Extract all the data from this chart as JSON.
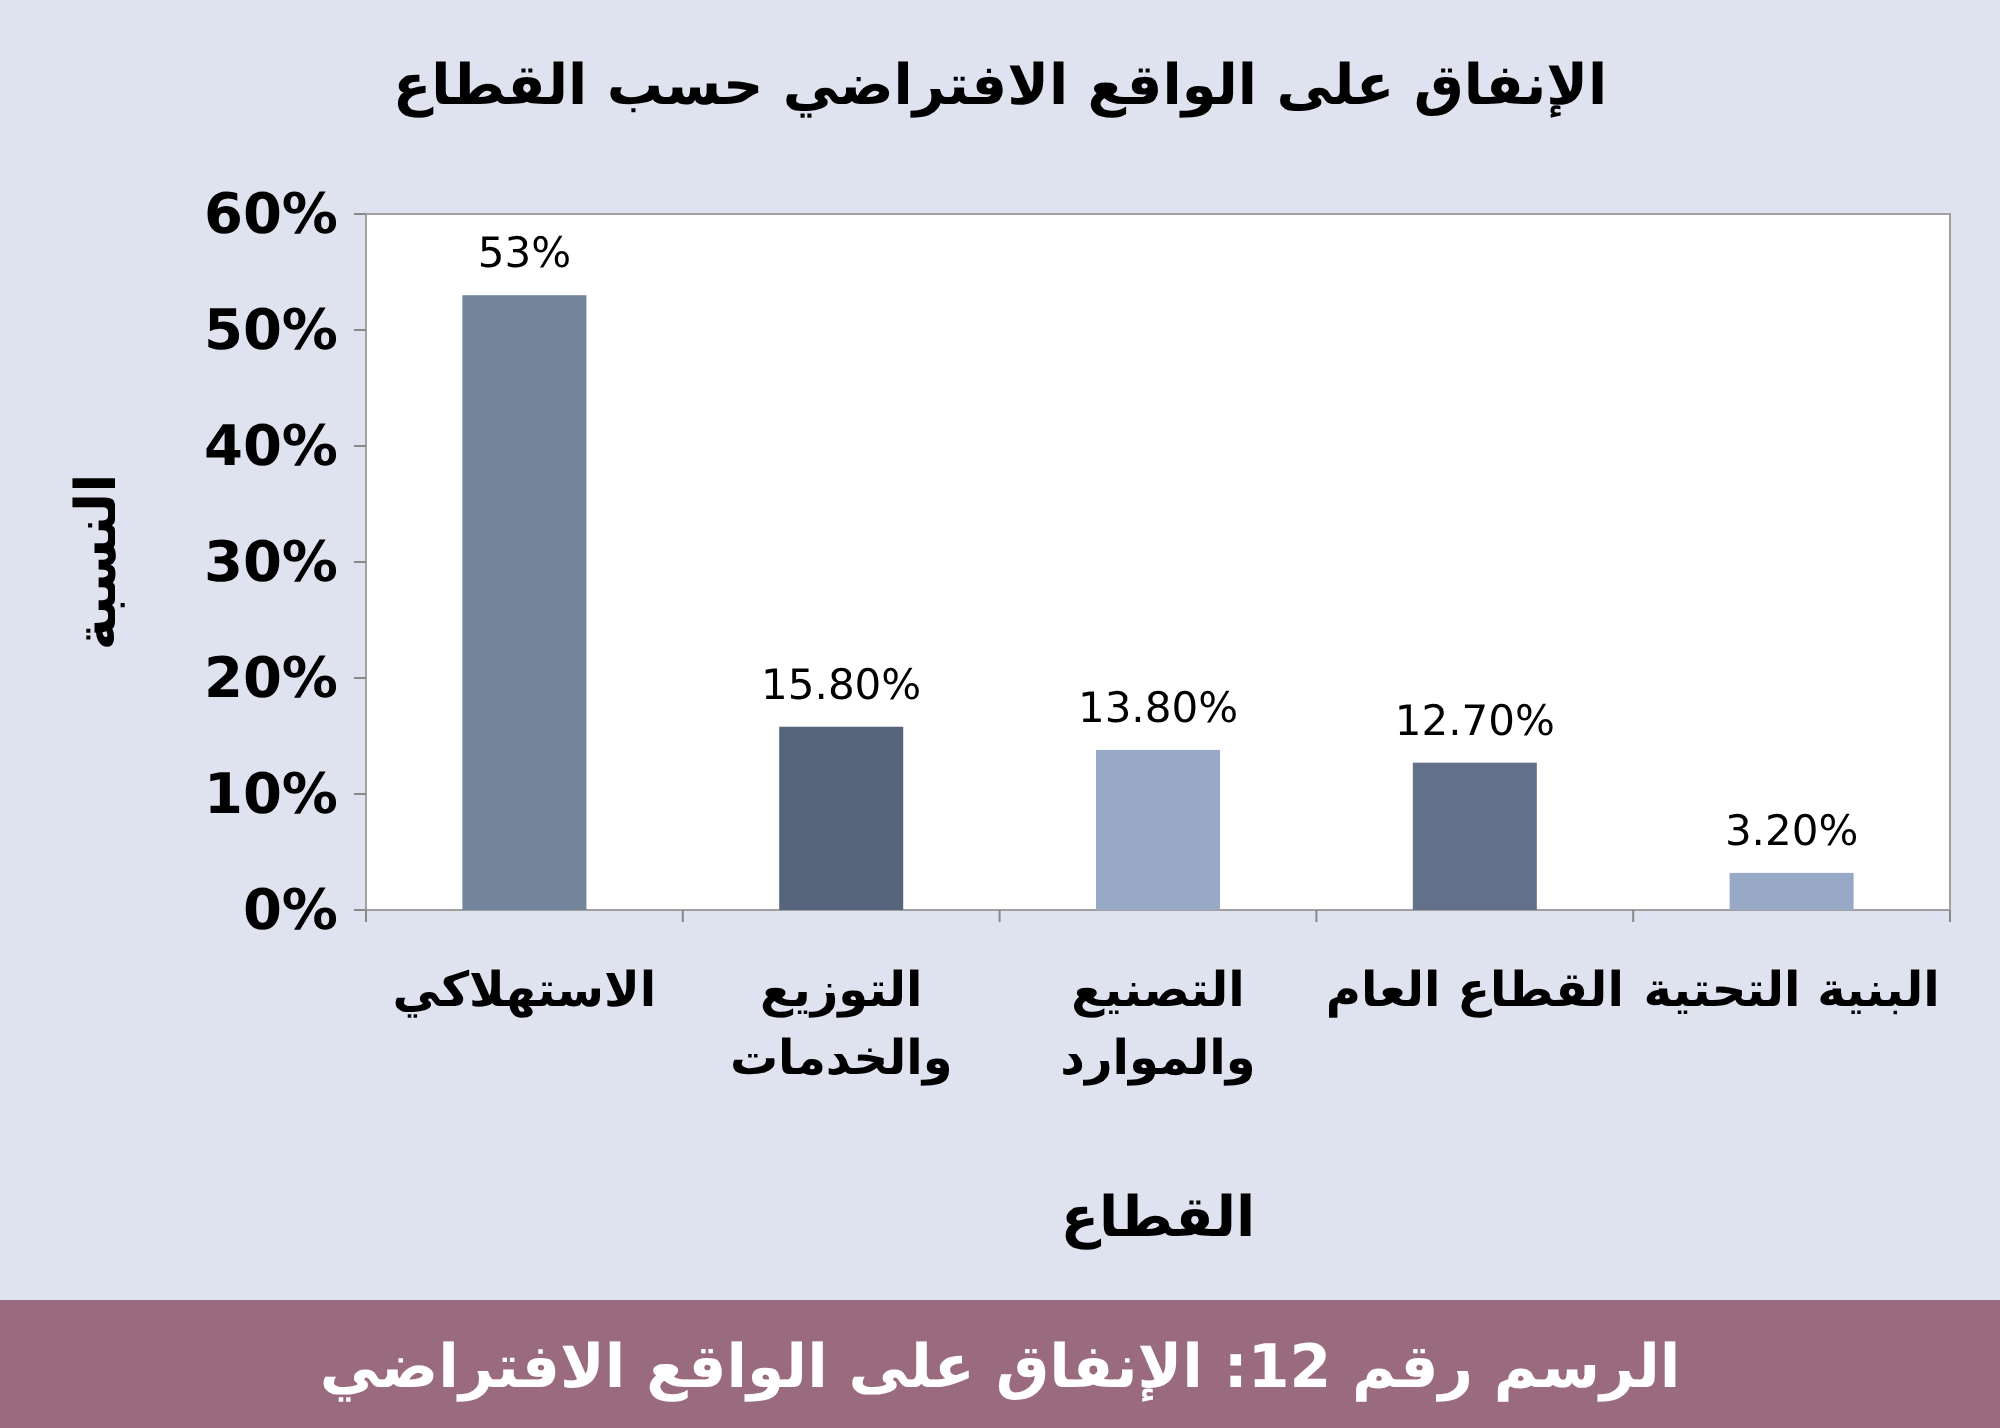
{
  "chart_data": {
    "type": "bar",
    "title": "الإنفاق على الواقع الافتراضي حسب القطاع",
    "xlabel": "القطاع",
    "ylabel": "النسبة",
    "categories": [
      "الاستهلاكي",
      "التوزيع والخدمات",
      "التصنيع والموارد",
      "القطاع العام",
      "البنية التحتية"
    ],
    "values": [
      53,
      15.8,
      13.8,
      12.7,
      3.2
    ],
    "colors": [
      "#738399",
      "#56647c",
      "#98a9c8",
      "#627089",
      "#98a9c8"
    ],
    "value_labels": [
      "53%",
      "15.80%",
      "13.80%",
      "12.70%",
      "3.20%"
    ],
    "ylim": [
      0,
      60
    ],
    "yticks": [
      {
        "value": 0,
        "label": "0%"
      },
      {
        "value": 10,
        "label": "10%"
      },
      {
        "value": 20,
        "label": "20%"
      },
      {
        "value": 30,
        "label": "30%"
      },
      {
        "value": 40,
        "label": "40%"
      },
      {
        "value": 50,
        "label": "50%"
      },
      {
        "value": 60,
        "label": "60%"
      }
    ],
    "grid": false,
    "annotations": [
      "الرسم رقم 12: الإنفاق على الواقع الافتراضي"
    ]
  }
}
